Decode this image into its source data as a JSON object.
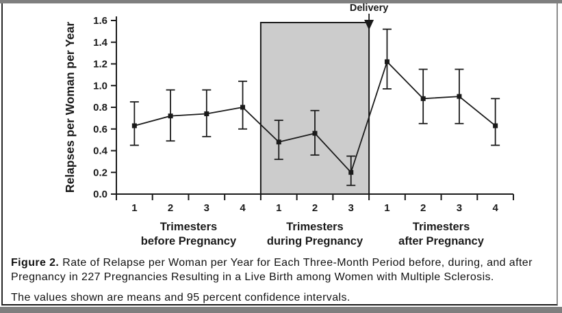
{
  "caption": {
    "label": "Figure 2.",
    "line1": "Rate of Relapse per Woman per Year for Each Three-Month Period before, during, and after",
    "line2": "Pregnancy in 227 Pregnancies Resulting in a Live Birth among Women with Multiple Sclerosis.",
    "note": "The values shown are means and 95 percent confidence intervals."
  },
  "chart_data": {
    "type": "line",
    "title": "",
    "ylabel": "Relapses per Woman per Year",
    "xlabel": "",
    "ylim": [
      0.0,
      1.6
    ],
    "ytick_step": 0.2,
    "ytick_labels": [
      "0.0",
      "0.2",
      "0.4",
      "0.6",
      "0.8",
      "1.0",
      "1.2",
      "1.4",
      "1.6"
    ],
    "annotation": {
      "label": "Delivery",
      "position": "end of during-pregnancy region"
    },
    "error_bars": "95 percent confidence intervals",
    "marker": "filled-square",
    "grid": false,
    "legend": "none",
    "colors": {
      "line": "#1a1a1a",
      "shade": "#cccccc",
      "frame_bar": "#7f7f7f"
    },
    "groups": [
      {
        "label": [
          "Trimesters",
          "before Pregnancy"
        ],
        "categories": [
          "1",
          "2",
          "3",
          "4"
        ],
        "means": [
          0.63,
          0.72,
          0.74,
          0.8
        ],
        "ci_low": [
          0.45,
          0.49,
          0.53,
          0.6
        ],
        "ci_high": [
          0.85,
          0.96,
          0.96,
          1.04
        ],
        "shaded": false
      },
      {
        "label": [
          "Trimesters",
          "during Pregnancy"
        ],
        "categories": [
          "1",
          "2",
          "3"
        ],
        "means": [
          0.48,
          0.56,
          0.2
        ],
        "ci_low": [
          0.32,
          0.36,
          0.08
        ],
        "ci_high": [
          0.68,
          0.77,
          0.35
        ],
        "shaded": true
      },
      {
        "label": [
          "Trimesters",
          "after Pregnancy"
        ],
        "categories": [
          "1",
          "2",
          "3",
          "4"
        ],
        "means": [
          1.22,
          0.88,
          0.9,
          0.63
        ],
        "ci_low": [
          0.97,
          0.65,
          0.65,
          0.45
        ],
        "ci_high": [
          1.52,
          1.15,
          1.15,
          0.88
        ],
        "shaded": false
      }
    ]
  }
}
